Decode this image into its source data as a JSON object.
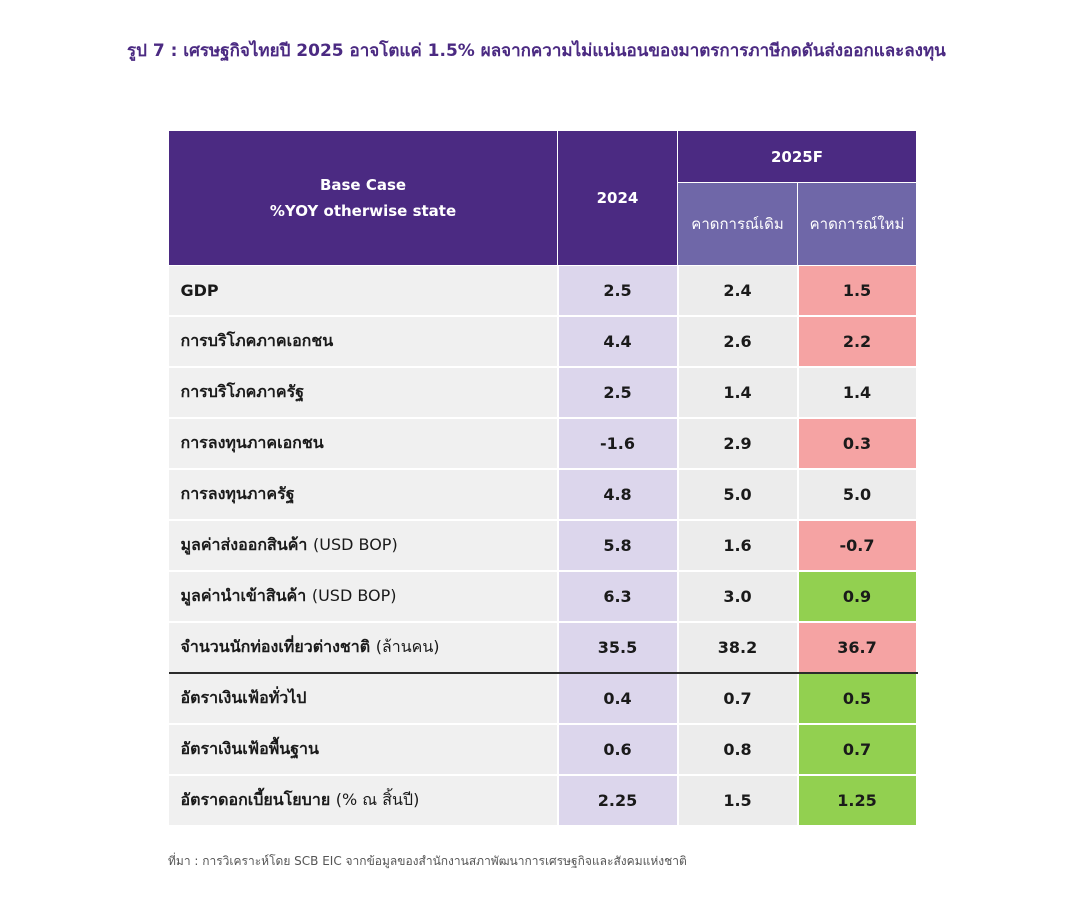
{
  "title": "รูป 7 : เศรษฐกิจไทยปี 2025 อาจโตแค่ 1.5% ผลจากความไม่แน่นอนของมาตรการภาษีกดดันส่งออกและลงทุน",
  "header": {
    "base_case": "Base Case",
    "yoy_note": "%YOY otherwise state",
    "year_2024": "2024",
    "year_2025f": "2025F",
    "old_forecast": "คาดการณ์เดิม",
    "new_forecast": "คาดการณ์ใหม่"
  },
  "colors": {
    "header_bg": "#4b2a82",
    "subheader_bg": "#6f67a8",
    "col_2024_bg": "#dcd6ec",
    "downgrade_bg": "#f5a3a3",
    "upgrade_bg": "#92d050",
    "unchanged_bg": "#ececec"
  },
  "rows": [
    {
      "label": "GDP",
      "unit": "",
      "y2024": "2.5",
      "old": "2.4",
      "new": "1.5",
      "change": "down"
    },
    {
      "label": "การบริโภคภาคเอกชน",
      "unit": "",
      "y2024": "4.4",
      "old": "2.6",
      "new": "2.2",
      "change": "down"
    },
    {
      "label": "การบริโภคภาครัฐ",
      "unit": "",
      "y2024": "2.5",
      "old": "1.4",
      "new": "1.4",
      "change": "same"
    },
    {
      "label": "การลงทุนภาคเอกชน",
      "unit": "",
      "y2024": "-1.6",
      "old": "2.9",
      "new": "0.3",
      "change": "down"
    },
    {
      "label": "การลงทุนภาครัฐ",
      "unit": "",
      "y2024": "4.8",
      "old": "5.0",
      "new": "5.0",
      "change": "same"
    },
    {
      "label": "มูลค่าส่งออกสินค้า",
      "unit": "(USD BOP)",
      "y2024": "5.8",
      "old": "1.6",
      "new": "-0.7",
      "change": "down"
    },
    {
      "label": "มูลค่านำเข้าสินค้า",
      "unit": "(USD BOP)",
      "y2024": "6.3",
      "old": "3.0",
      "new": "0.9",
      "change": "up"
    },
    {
      "label": "จำนวนนักท่องเที่ยวต่างชาติ",
      "unit": "(ล้านคน)",
      "y2024": "35.5",
      "old": "38.2",
      "new": "36.7",
      "change": "down"
    },
    {
      "label": "อัตราเงินเฟ้อทั่วไป",
      "unit": "",
      "y2024": "0.4",
      "old": "0.7",
      "new": "0.5",
      "change": "up"
    },
    {
      "label": "อัตราเงินเฟ้อพื้นฐาน",
      "unit": "",
      "y2024": "0.6",
      "old": "0.8",
      "new": "0.7",
      "change": "up"
    },
    {
      "label": "อัตราดอกเบี้ยนโยบาย",
      "unit": "(% ณ สิ้นปี)",
      "y2024": "2.25",
      "old": "1.5",
      "new": "1.25",
      "change": "up"
    }
  ],
  "source": "ที่มา : การวิเคราะห์โดย SCB EIC จากข้อมูลของสำนักงานสภาพัฒนาการเศรษฐกิจและสังคมแห่งชาติ"
}
